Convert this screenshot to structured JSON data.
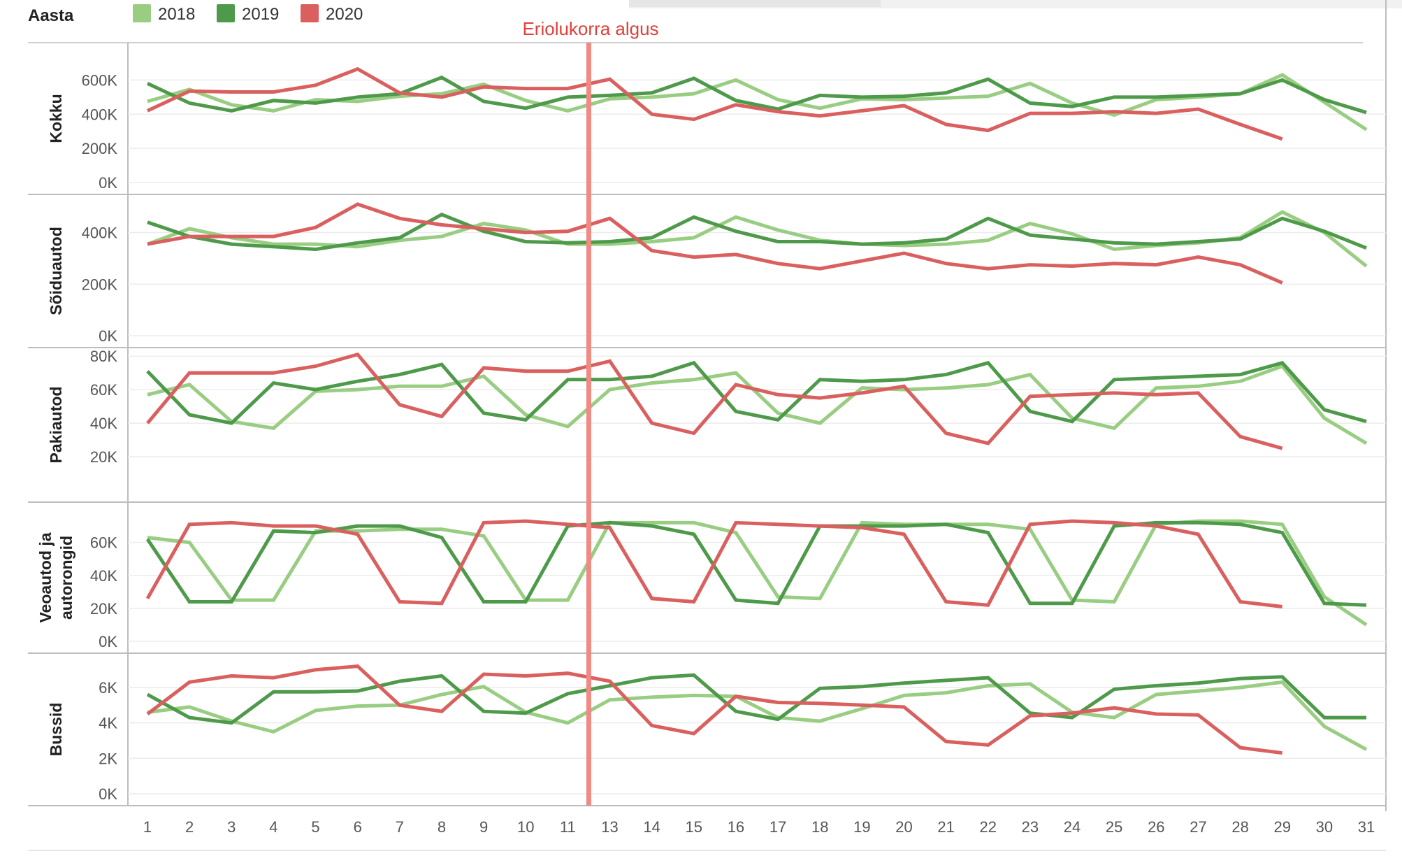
{
  "legend": {
    "title": "Aasta",
    "items": [
      {
        "label": "2018",
        "color": "#98cd82"
      },
      {
        "label": "2019",
        "color": "#4e9a4a"
      },
      {
        "label": "2020",
        "color": "#d9605f"
      }
    ]
  },
  "annotation": {
    "text": "Eriolukorra algus",
    "after_day": "11",
    "color": "#f08a83"
  },
  "chart_data": {
    "type": "line",
    "x": [
      "1",
      "2",
      "3",
      "4",
      "5",
      "6",
      "7",
      "8",
      "9",
      "10",
      "11",
      "13",
      "14",
      "15",
      "16",
      "17",
      "18",
      "19",
      "20",
      "21",
      "22",
      "23",
      "24",
      "25",
      "26",
      "27",
      "28",
      "29",
      "30",
      "31"
    ],
    "panels": [
      {
        "title": "Kokku",
        "ylim": [
          0,
          700000
        ],
        "ticks": [
          {
            "v": 0,
            "label": "0K"
          },
          {
            "v": 200000,
            "label": "200K"
          },
          {
            "v": 400000,
            "label": "400K"
          },
          {
            "v": 600000,
            "label": "600K"
          }
        ],
        "series": [
          {
            "name": "2018",
            "color": "#98cd82",
            "values": [
              475000,
              545000,
              455000,
              420000,
              485000,
              475000,
              505000,
              520000,
              575000,
              480000,
              420000,
              490000,
              500000,
              520000,
              600000,
              485000,
              435000,
              490000,
              485000,
              495000,
              505000,
              580000,
              465000,
              395000,
              485000,
              500000,
              520000,
              630000,
              470000,
              310000
            ]
          },
          {
            "name": "2019",
            "color": "#4e9a4a",
            "values": [
              580000,
              465000,
              420000,
              480000,
              465000,
              500000,
              520000,
              615000,
              475000,
              435000,
              500000,
              510000,
              525000,
              610000,
              480000,
              430000,
              510000,
              500000,
              505000,
              525000,
              605000,
              465000,
              445000,
              500000,
              500000,
              510000,
              520000,
              600000,
              485000,
              410000
            ]
          },
          {
            "name": "2020",
            "color": "#d9605f",
            "values": [
              420000,
              535000,
              530000,
              530000,
              570000,
              665000,
              525000,
              500000,
              560000,
              550000,
              550000,
              605000,
              400000,
              370000,
              455000,
              415000,
              390000,
              420000,
              450000,
              340000,
              305000,
              405000,
              405000,
              415000,
              405000,
              430000,
              340000,
              255000,
              null,
              null
            ]
          }
        ]
      },
      {
        "title": "Sõiduautod",
        "ylim": [
          0,
          510000
        ],
        "ticks": [
          {
            "v": 0,
            "label": "0K"
          },
          {
            "v": 200000,
            "label": "200K"
          },
          {
            "v": 400000,
            "label": "400K"
          }
        ],
        "series": [
          {
            "name": "2018",
            "color": "#98cd82",
            "values": [
              355000,
              415000,
              380000,
              355000,
              355000,
              345000,
              370000,
              385000,
              435000,
              410000,
              355000,
              355000,
              365000,
              380000,
              460000,
              410000,
              370000,
              355000,
              350000,
              355000,
              370000,
              435000,
              395000,
              335000,
              350000,
              360000,
              380000,
              480000,
              400000,
              270000
            ]
          },
          {
            "name": "2019",
            "color": "#4e9a4a",
            "values": [
              440000,
              385000,
              355000,
              345000,
              335000,
              360000,
              380000,
              470000,
              405000,
              365000,
              360000,
              365000,
              380000,
              460000,
              405000,
              365000,
              365000,
              355000,
              360000,
              375000,
              455000,
              390000,
              375000,
              360000,
              355000,
              365000,
              375000,
              455000,
              405000,
              340000
            ]
          },
          {
            "name": "2020",
            "color": "#d9605f",
            "values": [
              355000,
              385000,
              385000,
              385000,
              420000,
              510000,
              455000,
              430000,
              415000,
              400000,
              405000,
              455000,
              330000,
              305000,
              315000,
              280000,
              260000,
              290000,
              320000,
              280000,
              260000,
              275000,
              270000,
              280000,
              275000,
              305000,
              275000,
              205000,
              null,
              null
            ]
          }
        ]
      },
      {
        "title": "Pakiautod",
        "ylim": [
          0,
          83000
        ],
        "ticks": [
          {
            "v": 20000,
            "label": "20K"
          },
          {
            "v": 40000,
            "label": "40K"
          },
          {
            "v": 60000,
            "label": "60K"
          },
          {
            "v": 80000,
            "label": "80K"
          }
        ],
        "series": [
          {
            "name": "2018",
            "color": "#98cd82",
            "values": [
              57000,
              63000,
              41000,
              37000,
              59000,
              60000,
              62000,
              62000,
              68000,
              45000,
              38000,
              60000,
              64000,
              66000,
              70000,
              46000,
              40000,
              61000,
              60000,
              61000,
              63000,
              69000,
              43000,
              37000,
              61000,
              62000,
              65000,
              74000,
              43000,
              28000
            ]
          },
          {
            "name": "2019",
            "color": "#4e9a4a",
            "values": [
              71000,
              45000,
              40000,
              64000,
              60000,
              65000,
              69000,
              75000,
              46000,
              42000,
              66000,
              66000,
              68000,
              76000,
              47000,
              42000,
              66000,
              65000,
              66000,
              69000,
              76000,
              47000,
              41000,
              66000,
              67000,
              68000,
              69000,
              76000,
              48000,
              41000
            ]
          },
          {
            "name": "2020",
            "color": "#d9605f",
            "values": [
              40000,
              70000,
              70000,
              70000,
              74000,
              81000,
              51000,
              44000,
              73000,
              71000,
              71000,
              77000,
              40000,
              34000,
              63000,
              57000,
              55000,
              58000,
              62000,
              34000,
              28000,
              56000,
              57000,
              58000,
              57000,
              58000,
              32000,
              25000,
              null,
              null
            ]
          }
        ]
      },
      {
        "title": [
          "Veoautod ja",
          "autorongid"
        ],
        "ylim": [
          0,
          76000
        ],
        "ticks": [
          {
            "v": 0,
            "label": "0K"
          },
          {
            "v": 20000,
            "label": "20K"
          },
          {
            "v": 40000,
            "label": "40K"
          },
          {
            "v": 60000,
            "label": "60K"
          }
        ],
        "series": [
          {
            "name": "2018",
            "color": "#98cd82",
            "values": [
              63000,
              60000,
              25000,
              25000,
              67000,
              67000,
              68000,
              68000,
              64000,
              25000,
              25000,
              72000,
              72000,
              72000,
              66000,
              27000,
              26000,
              72000,
              71000,
              71000,
              71000,
              68000,
              25000,
              24000,
              71000,
              73000,
              73000,
              71000,
              27000,
              10000
            ]
          },
          {
            "name": "2019",
            "color": "#4e9a4a",
            "values": [
              62000,
              24000,
              24000,
              67000,
              66000,
              70000,
              70000,
              63000,
              24000,
              24000,
              70000,
              72000,
              70000,
              65000,
              25000,
              23000,
              70000,
              70000,
              70000,
              71000,
              66000,
              23000,
              23000,
              70000,
              72000,
              72000,
              71000,
              66000,
              23000,
              22000
            ]
          },
          {
            "name": "2020",
            "color": "#d9605f",
            "values": [
              26000,
              71000,
              72000,
              70000,
              70000,
              65000,
              24000,
              23000,
              72000,
              73000,
              71000,
              69000,
              26000,
              24000,
              72000,
              71000,
              70000,
              69000,
              65000,
              24000,
              22000,
              71000,
              73000,
              72000,
              70000,
              65000,
              24000,
              21000,
              null,
              null
            ]
          }
        ]
      },
      {
        "title": "Bussid",
        "ylim": [
          0,
          7500
        ],
        "ticks": [
          {
            "v": 0,
            "label": "0K"
          },
          {
            "v": 2000,
            "label": "2K"
          },
          {
            "v": 4000,
            "label": "4K"
          },
          {
            "v": 6000,
            "label": "6K"
          }
        ],
        "series": [
          {
            "name": "2018",
            "color": "#98cd82",
            "values": [
              4600,
              4900,
              4100,
              3500,
              4700,
              4950,
              5000,
              5600,
              6050,
              4600,
              4000,
              5300,
              5450,
              5550,
              5500,
              4300,
              4100,
              4800,
              5550,
              5700,
              6100,
              6200,
              4600,
              4300,
              5600,
              5800,
              6000,
              6300,
              3800,
              2500
            ]
          },
          {
            "name": "2019",
            "color": "#4e9a4a",
            "values": [
              5600,
              4300,
              4000,
              5750,
              5750,
              5800,
              6350,
              6650,
              4650,
              4550,
              5650,
              6100,
              6550,
              6700,
              4650,
              4200,
              5950,
              6050,
              6250,
              6400,
              6550,
              4550,
              4300,
              5900,
              6100,
              6250,
              6500,
              6600,
              4300,
              4300
            ]
          },
          {
            "name": "2020",
            "color": "#d9605f",
            "values": [
              4500,
              6300,
              6650,
              6550,
              7000,
              7200,
              5000,
              4650,
              6750,
              6650,
              6800,
              6350,
              3850,
              3400,
              5500,
              5150,
              5100,
              5000,
              4900,
              2950,
              2750,
              4400,
              4550,
              4850,
              4500,
              4450,
              2600,
              2300,
              null,
              null
            ]
          }
        ]
      }
    ]
  }
}
